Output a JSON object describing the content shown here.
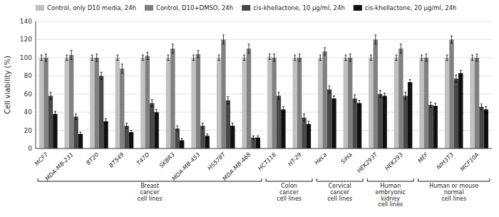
{
  "chart_data": {
    "type": "bar",
    "categories": [
      "MCF7",
      "MDA-MB-231",
      "BT20",
      "BT549",
      "T47D",
      "SKBR3",
      "MDA-MB-453",
      "HS578T",
      "MDA-MB-468",
      "HCT116",
      "HT-29",
      "HeLa",
      "SiHa",
      "HEK293T",
      "HEK293",
      "MEF",
      "NIH3T3",
      "MCF10A"
    ],
    "series": [
      {
        "name": "Control, only D10 media, 24h",
        "color": "#c0c0c0",
        "values": [
          100,
          100,
          100,
          100,
          100,
          100,
          100,
          100,
          100,
          101,
          100,
          100,
          100,
          100,
          100,
          100,
          100,
          100
        ],
        "errors": [
          3,
          3,
          3,
          3,
          3,
          3,
          3,
          3,
          3,
          3,
          3,
          3,
          3,
          3,
          3,
          3,
          3,
          3
        ]
      },
      {
        "name": "Control, D10+DMSO, 24h",
        "color": "#808080",
        "values": [
          100,
          103,
          100,
          88,
          102,
          110,
          104,
          120,
          110,
          100,
          100,
          107,
          100,
          120,
          110,
          100,
          120,
          100
        ],
        "errors": [
          4,
          5,
          4,
          5,
          4,
          5,
          4,
          5,
          5,
          4,
          4,
          4,
          4,
          5,
          5,
          4,
          4,
          4
        ]
      },
      {
        "name": "cis-khellactone, 10 μg/ml, 24h",
        "color": "#484848",
        "values": [
          58,
          35,
          80,
          25,
          50,
          22,
          25,
          53,
          12,
          58,
          34,
          65,
          55,
          60,
          58,
          48,
          77,
          46
        ],
        "errors": [
          4,
          3,
          4,
          3,
          4,
          3,
          3,
          4,
          2,
          4,
          4,
          4,
          4,
          4,
          4,
          3,
          4,
          3
        ]
      },
      {
        "name": "cis-khellactone, 20 μg/ml, 24h",
        "color": "#101010",
        "values": [
          38,
          16,
          30,
          18,
          40,
          9,
          14,
          25,
          12,
          43,
          27,
          55,
          50,
          58,
          73,
          47,
          83,
          43
        ],
        "errors": [
          3,
          2,
          3,
          2,
          3,
          2,
          2,
          3,
          2,
          3,
          3,
          3,
          3,
          3,
          3,
          3,
          3,
          3
        ]
      }
    ],
    "ylabel": "Cell viability  (%)",
    "ylim": [
      0,
      140
    ],
    "yticks": [
      0,
      20,
      40,
      60,
      80,
      100,
      120,
      140
    ],
    "grid": true,
    "legend": "upper left",
    "groups": [
      {
        "label": "Breast\ncancer\ncell lines",
        "start": "MCF7",
        "end": "MDA-MB-468"
      },
      {
        "label": "Colon\ncancer\ncell lines",
        "start": "HCT116",
        "end": "HT-29"
      },
      {
        "label": "Cervical\ncancer\ncell lines",
        "start": "HeLa",
        "end": "SiHa"
      },
      {
        "label": "Human\nembryonic\nkidney\ncell lines",
        "start": "HEK293T",
        "end": "HEK293"
      },
      {
        "label": "Human or mouse\nnormal\ncell lines",
        "start": "MEF",
        "end": "MCF10A"
      }
    ]
  }
}
